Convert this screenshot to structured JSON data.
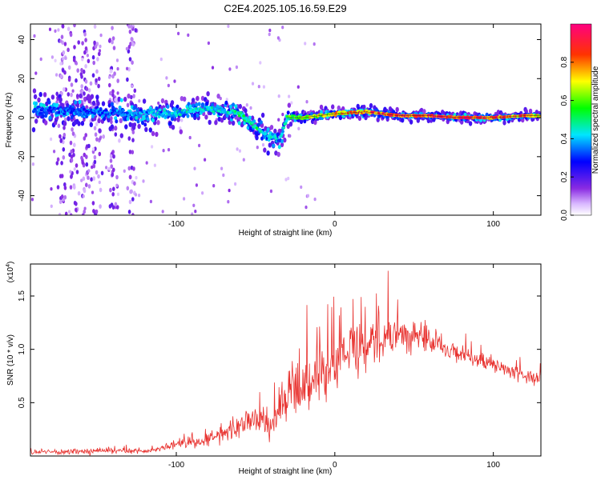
{
  "title": "C2E4.2025.105.16.59.E29",
  "colors": {
    "snr_line": "#e8322f",
    "background": "#ffffff",
    "frame": "#000000"
  },
  "chart_data": [
    {
      "type": "heatmap",
      "xlabel": "Height of straight line (km)",
      "ylabel": "Frequency (Hz)",
      "xlim": [
        -192,
        130
      ],
      "ylim": [
        -50,
        48
      ],
      "xticks": [
        -100,
        0,
        100
      ],
      "yticks": [
        -40,
        -20,
        0,
        20,
        40
      ],
      "xtick_labels": [
        "-100",
        "0",
        "100"
      ],
      "ytick_labels": [
        "-40",
        "-20",
        "0",
        "20",
        "40"
      ],
      "colorbar": {
        "label": "Normalized spectral amplitude",
        "range": [
          0,
          1
        ],
        "ticks": [
          0.0,
          0.2,
          0.4,
          0.6,
          0.8
        ],
        "tick_labels": [
          "0.0",
          "0.2",
          "0.4",
          "0.6",
          "0.8"
        ],
        "colormap": "rainbow (purple → blue → cyan → green → yellow → red → magenta)"
      },
      "ridge": {
        "x": [
          -190,
          -150,
          -120,
          -100,
          -80,
          -60,
          -50,
          -40,
          -35,
          -30,
          -20,
          0,
          20,
          40,
          60,
          80,
          100,
          120,
          130
        ],
        "y": [
          4,
          3,
          2,
          2,
          5,
          2,
          -5,
          -10,
          -12,
          0,
          0,
          2,
          3,
          1,
          1,
          0,
          0,
          1,
          1
        ],
        "amplitude": [
          0.35,
          0.35,
          0.4,
          0.45,
          0.45,
          0.5,
          0.5,
          0.45,
          0.4,
          0.55,
          0.7,
          0.75,
          0.85,
          0.9,
          0.95,
          0.95,
          0.9,
          0.85,
          0.7
        ],
        "spread": [
          8,
          8,
          7,
          7,
          6,
          6,
          6,
          7,
          7,
          4,
          3,
          3,
          3,
          2,
          2,
          2,
          2,
          2,
          2
        ]
      },
      "noise_columns_x": [
        -172,
        -165,
        -158,
        -150,
        -140,
        -128
      ]
    },
    {
      "type": "line",
      "xlabel": "Height of straight line (km)",
      "ylabel": "SNR (10 * v/v)",
      "scale_label": "(x10",
      "scale_exponent": "4",
      "xlim": [
        -192,
        130
      ],
      "ylim": [
        0,
        1.8
      ],
      "xticks": [
        -100,
        0,
        100
      ],
      "yticks": [
        0.5,
        1.0,
        1.5
      ],
      "xtick_labels": [
        "-100",
        "0",
        "100"
      ],
      "ytick_labels": [
        "0.5",
        "1.0",
        "1.5"
      ],
      "series": [
        {
          "x": [
            -192,
            -180,
            -160,
            -140,
            -120,
            -100,
            -80,
            -70,
            -60,
            -50,
            -40,
            -35,
            -30,
            -25,
            -20,
            -10,
            0,
            10,
            20,
            30,
            40,
            50,
            60,
            70,
            80,
            90,
            100,
            110,
            120,
            130
          ],
          "y": [
            0.03,
            0.04,
            0.04,
            0.05,
            0.04,
            0.1,
            0.15,
            0.2,
            0.28,
            0.35,
            0.3,
            0.45,
            0.55,
            0.65,
            0.7,
            0.8,
            0.85,
            0.95,
            1.05,
            1.1,
            1.15,
            1.15,
            1.1,
            1.0,
            0.95,
            0.9,
            0.85,
            0.8,
            0.75,
            0.72
          ],
          "noise": [
            0.02,
            0.02,
            0.03,
            0.03,
            0.02,
            0.04,
            0.06,
            0.08,
            0.1,
            0.12,
            0.15,
            0.2,
            0.25,
            0.28,
            0.3,
            0.3,
            0.28,
            0.25,
            0.22,
            0.2,
            0.18,
            0.15,
            0.12,
            0.1,
            0.08,
            0.07,
            0.06,
            0.06,
            0.06,
            0.06
          ]
        }
      ]
    }
  ]
}
